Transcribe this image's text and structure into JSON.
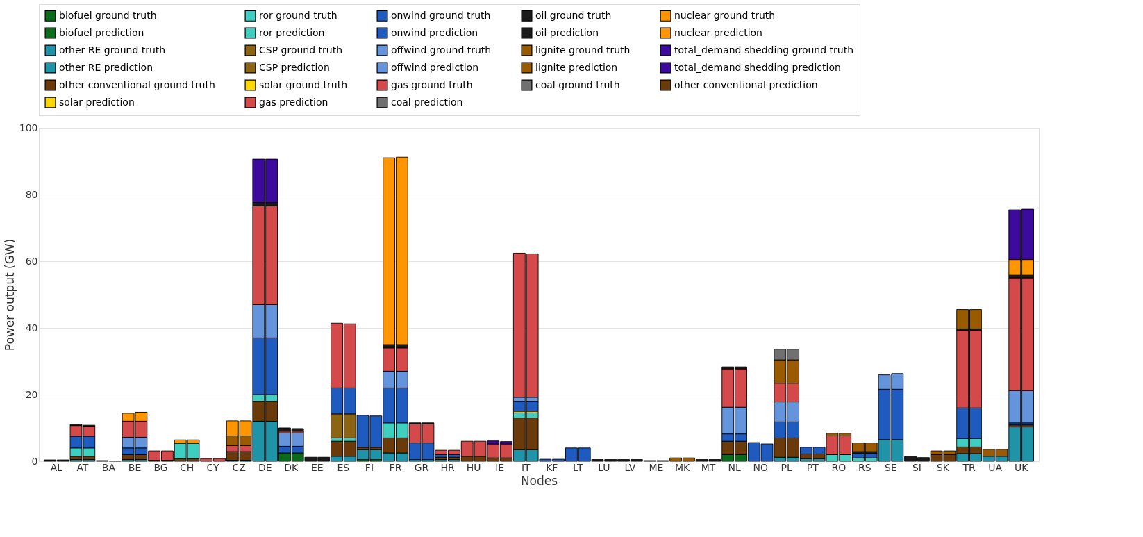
{
  "chart_data": {
    "type": "bar",
    "stacked": true,
    "xlabel": "Nodes",
    "ylabel": "Power output (GW)",
    "categories": [
      "AL",
      null,
      "AT",
      null,
      "BA",
      null,
      "BE",
      null,
      "BG",
      null,
      "CH",
      null,
      "CY",
      null,
      "CZ",
      null,
      "DE",
      null,
      "DK",
      null,
      "EE",
      null,
      "ES",
      null,
      "FI",
      null,
      "FR",
      null,
      "GR",
      null,
      "HR",
      null,
      "HU",
      null,
      "IE",
      null,
      "IT",
      null,
      "KF",
      null,
      "LT",
      null,
      "LU",
      null,
      "LV",
      null,
      "ME",
      null,
      "MK",
      null,
      "MT",
      null,
      "NL",
      null,
      "NO",
      null,
      "PL",
      null,
      "PT",
      null,
      "RO",
      null,
      "RS",
      null,
      "SE",
      null,
      "SI",
      null,
      "SK",
      null,
      "TR",
      null,
      "UA",
      null,
      "UK",
      null
    ],
    "ylim": [
      0,
      100
    ],
    "yticks": [
      0,
      20,
      40,
      60,
      80,
      100
    ],
    "grid": "y",
    "legend": "top",
    "series": [
      {
        "name": "biofuel ground truth",
        "color": "#0a6b1a",
        "values": [
          null,
          null,
          null,
          null,
          null,
          null,
          null,
          null,
          null,
          null,
          null,
          null,
          null,
          null,
          null,
          null,
          null,
          null,
          2.5,
          null,
          null,
          null,
          null,
          null,
          0.5,
          null,
          null,
          null,
          null,
          null,
          null,
          null,
          null,
          null,
          null,
          null,
          null,
          null,
          null,
          null,
          null,
          null,
          null,
          null,
          null,
          null,
          null,
          null,
          null,
          null,
          null,
          null,
          2,
          null,
          null,
          null,
          null,
          null,
          null,
          null,
          null,
          null,
          null,
          null,
          null,
          null,
          null,
          null,
          null,
          null,
          null,
          null,
          null,
          null,
          null,
          null
        ]
      },
      {
        "name": "biofuel prediction",
        "color": "#0a6b1a",
        "values": [
          null,
          null,
          null,
          null,
          null,
          null,
          null,
          null,
          null,
          null,
          null,
          null,
          null,
          null,
          null,
          null,
          null,
          null,
          null,
          2.5,
          null,
          null,
          null,
          null,
          null,
          0.5,
          null,
          null,
          null,
          null,
          null,
          null,
          null,
          null,
          null,
          null,
          null,
          null,
          null,
          null,
          null,
          null,
          null,
          null,
          null,
          null,
          null,
          null,
          null,
          null,
          null,
          null,
          null,
          2,
          null,
          null,
          null,
          null,
          null,
          null,
          null,
          null,
          null,
          null,
          null,
          null,
          null,
          null,
          null,
          null,
          null,
          null,
          null,
          null,
          null,
          null
        ]
      },
      {
        "name": "other RE ground truth",
        "color": "#1f93a8",
        "values": [
          null,
          null,
          0.5,
          null,
          null,
          null,
          0.5,
          null,
          null,
          null,
          null,
          null,
          null,
          null,
          0.3,
          null,
          12,
          null,
          null,
          null,
          null,
          null,
          1.5,
          null,
          3,
          null,
          2.5,
          null,
          0.5,
          null,
          0.5,
          null,
          null,
          null,
          null,
          null,
          3.5,
          null,
          null,
          null,
          null,
          null,
          null,
          null,
          null,
          null,
          null,
          null,
          null,
          null,
          null,
          null,
          null,
          null,
          null,
          null,
          1.2,
          null,
          0.8,
          null,
          null,
          null,
          null,
          null,
          6.5,
          null,
          null,
          null,
          null,
          null,
          2.3,
          null,
          1.5,
          null,
          10.3,
          null
        ]
      },
      {
        "name": "other RE prediction",
        "color": "#1f93a8",
        "values": [
          null,
          null,
          null,
          0.5,
          null,
          null,
          null,
          0.5,
          null,
          null,
          null,
          null,
          null,
          null,
          null,
          0.3,
          null,
          12,
          null,
          null,
          null,
          null,
          null,
          1.5,
          null,
          3,
          null,
          2.5,
          null,
          0.5,
          null,
          0.5,
          null,
          null,
          null,
          null,
          null,
          3.5,
          null,
          null,
          null,
          null,
          null,
          null,
          null,
          null,
          null,
          null,
          null,
          null,
          null,
          null,
          null,
          null,
          null,
          null,
          null,
          1.2,
          null,
          0.8,
          null,
          null,
          null,
          null,
          null,
          6.5,
          null,
          null,
          null,
          null,
          null,
          2.3,
          null,
          1.5,
          null,
          10.3
        ]
      },
      {
        "name": "other conventional ground truth",
        "color": "#6b3a0b",
        "values": [
          null,
          null,
          1,
          null,
          null,
          null,
          1.5,
          null,
          0.3,
          null,
          0.8,
          null,
          null,
          null,
          2.6,
          null,
          6,
          null,
          null,
          null,
          null,
          null,
          4.5,
          null,
          0.7,
          null,
          4.5,
          null,
          null,
          null,
          0.7,
          null,
          1.5,
          null,
          1,
          null,
          9.5,
          null,
          null,
          null,
          null,
          null,
          null,
          null,
          null,
          null,
          null,
          null,
          null,
          null,
          null,
          null,
          4,
          null,
          null,
          null,
          5.8,
          null,
          1.4,
          null,
          null,
          null,
          null,
          null,
          null,
          null,
          null,
          null,
          2,
          null,
          2,
          null,
          null,
          null,
          0.6,
          null
        ]
      },
      {
        "name": "other conventional prediction",
        "color": "#6b3a0b",
        "values": [
          null,
          null,
          null,
          1,
          null,
          null,
          null,
          1.5,
          null,
          0.3,
          null,
          0.8,
          null,
          null,
          null,
          2.6,
          null,
          6,
          null,
          null,
          null,
          null,
          null,
          4.5,
          null,
          0.7,
          null,
          4.5,
          null,
          null,
          null,
          0.7,
          null,
          1.5,
          null,
          1,
          null,
          9.5,
          null,
          null,
          null,
          null,
          null,
          null,
          null,
          null,
          null,
          null,
          null,
          null,
          null,
          null,
          null,
          4,
          null,
          null,
          null,
          5.8,
          null,
          1.4,
          null,
          null,
          null,
          null,
          null,
          null,
          null,
          null,
          null,
          2,
          null,
          2,
          null,
          null,
          null,
          0.6
        ]
      },
      {
        "name": "ror ground truth",
        "color": "#3ecfc0",
        "values": [
          null,
          null,
          2.5,
          null,
          null,
          null,
          null,
          null,
          null,
          null,
          4.6,
          null,
          null,
          null,
          null,
          null,
          2,
          null,
          null,
          null,
          null,
          null,
          1,
          null,
          null,
          null,
          4.5,
          null,
          null,
          null,
          null,
          null,
          null,
          null,
          null,
          null,
          1.5,
          null,
          null,
          null,
          null,
          null,
          null,
          null,
          null,
          null,
          null,
          null,
          null,
          null,
          null,
          null,
          null,
          null,
          null,
          null,
          null,
          null,
          null,
          null,
          2,
          null,
          1,
          null,
          null,
          null,
          null,
          null,
          null,
          null,
          2.5,
          null,
          null,
          null,
          null,
          null
        ]
      },
      {
        "name": "ror prediction",
        "color": "#3ecfc0",
        "values": [
          null,
          null,
          null,
          2.5,
          null,
          null,
          null,
          null,
          null,
          null,
          null,
          4.6,
          null,
          null,
          null,
          null,
          null,
          2,
          null,
          null,
          null,
          null,
          null,
          1,
          null,
          null,
          null,
          4.5,
          null,
          null,
          null,
          null,
          null,
          null,
          null,
          null,
          null,
          1.5,
          null,
          null,
          null,
          null,
          null,
          null,
          null,
          null,
          null,
          null,
          null,
          null,
          null,
          null,
          null,
          null,
          null,
          null,
          null,
          null,
          null,
          null,
          null,
          2,
          null,
          1,
          null,
          null,
          null,
          null,
          null,
          null,
          null,
          2.5,
          null,
          null,
          null,
          null
        ]
      },
      {
        "name": "CSP ground truth",
        "color": "#8b6513",
        "values": [
          null,
          null,
          null,
          null,
          null,
          null,
          null,
          null,
          null,
          null,
          null,
          null,
          null,
          null,
          null,
          null,
          null,
          null,
          null,
          null,
          null,
          null,
          7.2,
          null,
          null,
          null,
          null,
          null,
          null,
          null,
          null,
          null,
          null,
          null,
          null,
          null,
          null,
          null,
          null,
          null,
          null,
          null,
          null,
          null,
          null,
          null,
          null,
          null,
          null,
          null,
          null,
          null,
          null,
          null,
          null,
          null,
          null,
          null,
          null,
          null,
          null,
          null,
          null,
          null,
          null,
          null,
          null,
          null,
          null,
          null,
          null,
          null,
          null,
          null,
          null,
          null
        ]
      },
      {
        "name": "CSP prediction",
        "color": "#8b6513",
        "values": [
          null,
          null,
          null,
          null,
          null,
          null,
          null,
          null,
          null,
          null,
          null,
          null,
          null,
          null,
          null,
          null,
          null,
          null,
          null,
          null,
          null,
          null,
          null,
          7.2,
          null,
          null,
          null,
          null,
          null,
          null,
          null,
          null,
          null,
          null,
          null,
          null,
          null,
          null,
          null,
          null,
          null,
          null,
          null,
          null,
          null,
          null,
          null,
          null,
          null,
          null,
          null,
          null,
          null,
          null,
          null,
          null,
          null,
          null,
          null,
          null,
          null,
          null,
          null,
          null,
          null,
          null,
          null,
          null,
          null,
          null,
          null,
          null,
          null,
          null,
          null,
          null
        ]
      },
      {
        "name": "solar ground truth",
        "color": "#ffd700",
        "values": [
          null,
          null,
          null,
          null,
          null,
          null,
          null,
          null,
          null,
          null,
          null,
          null,
          null,
          null,
          null,
          null,
          null,
          null,
          null,
          null,
          null,
          null,
          null,
          null,
          null,
          null,
          null,
          null,
          null,
          null,
          null,
          null,
          null,
          null,
          null,
          null,
          0.5,
          null,
          null,
          null,
          null,
          null,
          null,
          null,
          null,
          null,
          null,
          null,
          null,
          null,
          null,
          null,
          null,
          null,
          null,
          null,
          null,
          null,
          null,
          null,
          null,
          null,
          null,
          null,
          null,
          null,
          null,
          null,
          null,
          null,
          null,
          null,
          null,
          null,
          null,
          null
        ]
      },
      {
        "name": "solar prediction",
        "color": "#ffd700",
        "values": [
          null,
          null,
          null,
          null,
          null,
          null,
          null,
          null,
          null,
          null,
          null,
          null,
          null,
          null,
          null,
          null,
          null,
          null,
          null,
          null,
          null,
          null,
          null,
          null,
          null,
          null,
          null,
          null,
          null,
          null,
          null,
          null,
          null,
          null,
          null,
          null,
          null,
          0.5,
          null,
          null,
          null,
          null,
          null,
          null,
          null,
          null,
          null,
          null,
          null,
          null,
          null,
          null,
          null,
          null,
          null,
          null,
          null,
          null,
          null,
          null,
          null,
          null,
          null,
          null,
          null,
          null,
          null,
          null,
          null,
          null,
          null,
          null,
          null,
          null,
          null,
          null
        ]
      },
      {
        "name": "onwind ground truth",
        "color": "#1f5bbf",
        "values": [
          null,
          null,
          3.5,
          null,
          null,
          null,
          2,
          null,
          null,
          null,
          null,
          null,
          null,
          null,
          null,
          null,
          17,
          null,
          2,
          null,
          null,
          null,
          7.8,
          null,
          9.6,
          null,
          10.5,
          null,
          5,
          null,
          0.8,
          null,
          null,
          null,
          null,
          null,
          3,
          null,
          0.6,
          null,
          4,
          null,
          null,
          null,
          null,
          null,
          null,
          null,
          null,
          null,
          null,
          null,
          2.2,
          null,
          5.6,
          null,
          4.8,
          null,
          2,
          null,
          null,
          null,
          1.3,
          null,
          15.1,
          null,
          null,
          null,
          null,
          null,
          9.2,
          null,
          null,
          null,
          0.6,
          null
        ]
      },
      {
        "name": "onwind prediction",
        "color": "#1f5bbf",
        "values": [
          null,
          null,
          null,
          3.5,
          null,
          null,
          null,
          2,
          null,
          null,
          null,
          null,
          null,
          null,
          null,
          null,
          null,
          17,
          null,
          2,
          null,
          null,
          null,
          7.8,
          null,
          9.4,
          null,
          10.5,
          null,
          5,
          null,
          0.8,
          null,
          null,
          null,
          null,
          null,
          3,
          null,
          0.6,
          null,
          4,
          null,
          null,
          null,
          null,
          null,
          null,
          null,
          null,
          null,
          null,
          null,
          2.2,
          null,
          5.2,
          null,
          4.8,
          null,
          2,
          null,
          null,
          null,
          1.3,
          null,
          15.1,
          null,
          null,
          null,
          null,
          null,
          9.2,
          null,
          null,
          null,
          0.6
        ]
      },
      {
        "name": "offwind ground truth",
        "color": "#6495dc",
        "values": [
          null,
          null,
          null,
          null,
          null,
          null,
          3.2,
          null,
          null,
          null,
          null,
          null,
          null,
          null,
          null,
          null,
          10,
          null,
          4,
          null,
          null,
          null,
          null,
          null,
          null,
          null,
          5,
          null,
          null,
          null,
          null,
          null,
          null,
          null,
          null,
          null,
          1.2,
          null,
          null,
          null,
          null,
          null,
          null,
          null,
          null,
          null,
          null,
          null,
          null,
          null,
          null,
          null,
          8,
          null,
          null,
          null,
          6,
          null,
          null,
          null,
          null,
          null,
          null,
          null,
          4.3,
          null,
          null,
          null,
          null,
          null,
          null,
          null,
          null,
          null,
          9.7,
          null
        ]
      },
      {
        "name": "offwind prediction",
        "color": "#6495dc",
        "values": [
          null,
          null,
          null,
          null,
          null,
          null,
          null,
          3.2,
          null,
          null,
          null,
          null,
          null,
          null,
          null,
          null,
          null,
          10,
          null,
          4,
          null,
          null,
          null,
          null,
          null,
          null,
          null,
          5,
          null,
          null,
          null,
          null,
          null,
          null,
          null,
          null,
          null,
          1.2,
          null,
          null,
          null,
          null,
          null,
          null,
          null,
          null,
          null,
          null,
          null,
          null,
          null,
          null,
          null,
          8,
          null,
          null,
          null,
          6,
          null,
          null,
          null,
          null,
          null,
          null,
          null,
          4.7,
          null,
          null,
          null,
          null,
          null,
          null,
          null,
          null,
          null,
          9.7
        ]
      },
      {
        "name": "gas ground truth",
        "color": "#d44a4a",
        "values": [
          null,
          null,
          3.2,
          null,
          null,
          null,
          4.8,
          null,
          2.8,
          null,
          null,
          null,
          0.8,
          null,
          1.8,
          null,
          29.6,
          null,
          0.5,
          null,
          null,
          null,
          19.4,
          null,
          null,
          null,
          7,
          null,
          5.7,
          null,
          1.3,
          null,
          4.5,
          null,
          4.2,
          null,
          43.2,
          null,
          null,
          null,
          null,
          null,
          null,
          null,
          null,
          null,
          null,
          null,
          null,
          null,
          null,
          null,
          11.5,
          null,
          null,
          null,
          5.6,
          null,
          null,
          null,
          5.6,
          null,
          null,
          null,
          null,
          null,
          null,
          null,
          null,
          null,
          23.3,
          null,
          null,
          null,
          33.8,
          null
        ]
      },
      {
        "name": "gas prediction",
        "color": "#d44a4a",
        "values": [
          null,
          null,
          null,
          3,
          null,
          null,
          null,
          4.8,
          null,
          2.8,
          null,
          null,
          null,
          0.8,
          null,
          1.8,
          null,
          29.6,
          null,
          0.5,
          null,
          null,
          null,
          19.2,
          null,
          null,
          null,
          7,
          null,
          5.7,
          null,
          1.3,
          null,
          4.5,
          null,
          4.2,
          null,
          43,
          null,
          null,
          null,
          null,
          null,
          null,
          null,
          null,
          null,
          null,
          null,
          null,
          null,
          null,
          null,
          11.5,
          null,
          null,
          null,
          5.6,
          null,
          null,
          null,
          5.6,
          null,
          null,
          null,
          null,
          null,
          null,
          null,
          null,
          null,
          23.3,
          null,
          null,
          null,
          33.8
        ]
      },
      {
        "name": "oil ground truth",
        "color": "#1a1a1a",
        "values": [
          0.4,
          null,
          0.3,
          null,
          0.2,
          null,
          null,
          null,
          null,
          null,
          null,
          null,
          null,
          null,
          null,
          null,
          1,
          null,
          1,
          null,
          1.2,
          null,
          null,
          null,
          null,
          null,
          1,
          null,
          0.3,
          null,
          null,
          null,
          null,
          null,
          null,
          null,
          null,
          null,
          null,
          null,
          null,
          null,
          0.5,
          null,
          0.5,
          null,
          0.2,
          null,
          null,
          null,
          0.5,
          null,
          0.6,
          null,
          null,
          null,
          null,
          null,
          null,
          null,
          null,
          null,
          0.6,
          null,
          null,
          null,
          1.4,
          null,
          null,
          null,
          0.4,
          null,
          null,
          null,
          0.8,
          null
        ]
      },
      {
        "name": "oil prediction",
        "color": "#1a1a1a",
        "values": [
          null,
          0.4,
          null,
          0.3,
          null,
          0.1,
          null,
          null,
          null,
          null,
          null,
          null,
          null,
          null,
          null,
          null,
          null,
          1,
          null,
          0.8,
          null,
          1.2,
          null,
          null,
          null,
          null,
          null,
          1,
          null,
          0.3,
          null,
          null,
          null,
          null,
          null,
          null,
          null,
          null,
          null,
          null,
          null,
          null,
          null,
          0.5,
          null,
          0.5,
          null,
          0.2,
          null,
          null,
          null,
          0.5,
          null,
          0.6,
          null,
          null,
          null,
          null,
          null,
          null,
          null,
          null,
          null,
          0.6,
          null,
          null,
          null,
          1.1,
          null,
          null,
          null,
          0.4,
          null,
          null,
          null,
          0.8
        ]
      },
      {
        "name": "lignite ground truth",
        "color": "#9a5a00",
        "values": [
          null,
          null,
          null,
          null,
          null,
          null,
          null,
          null,
          null,
          null,
          null,
          null,
          null,
          null,
          2.9,
          null,
          null,
          null,
          null,
          null,
          null,
          null,
          null,
          null,
          null,
          null,
          null,
          null,
          null,
          null,
          null,
          null,
          null,
          null,
          null,
          null,
          null,
          null,
          null,
          null,
          null,
          null,
          null,
          null,
          null,
          null,
          null,
          null,
          1,
          null,
          null,
          null,
          null,
          null,
          null,
          null,
          7,
          null,
          null,
          null,
          0.8,
          null,
          2.6,
          null,
          null,
          null,
          null,
          null,
          1.1,
          null,
          5.8,
          null,
          2.1,
          null,
          null,
          null
        ]
      },
      {
        "name": "lignite prediction",
        "color": "#9a5a00",
        "values": [
          null,
          null,
          null,
          null,
          null,
          null,
          null,
          null,
          null,
          null,
          null,
          null,
          null,
          null,
          null,
          2.9,
          null,
          null,
          null,
          null,
          null,
          null,
          null,
          null,
          null,
          null,
          null,
          null,
          null,
          null,
          null,
          null,
          null,
          null,
          null,
          null,
          null,
          null,
          null,
          null,
          null,
          null,
          null,
          null,
          null,
          null,
          null,
          null,
          null,
          1,
          null,
          null,
          null,
          null,
          null,
          null,
          null,
          7,
          null,
          null,
          null,
          0.8,
          null,
          2.6,
          null,
          null,
          null,
          null,
          null,
          1.1,
          null,
          5.8,
          null,
          2.1,
          null,
          null
        ]
      },
      {
        "name": "coal ground truth",
        "color": "#707070",
        "values": [
          null,
          null,
          null,
          null,
          null,
          null,
          null,
          null,
          null,
          null,
          null,
          null,
          null,
          null,
          null,
          null,
          null,
          null,
          null,
          null,
          null,
          null,
          null,
          null,
          null,
          null,
          null,
          null,
          null,
          null,
          null,
          null,
          null,
          null,
          null,
          null,
          null,
          null,
          null,
          null,
          null,
          null,
          null,
          null,
          null,
          null,
          null,
          null,
          null,
          null,
          null,
          null,
          null,
          null,
          null,
          null,
          3.2,
          null,
          null,
          null,
          null,
          null,
          null,
          null,
          null,
          null,
          null,
          null,
          null,
          null,
          null,
          null,
          null,
          null,
          null,
          null
        ]
      },
      {
        "name": "coal prediction",
        "color": "#707070",
        "values": [
          null,
          null,
          null,
          null,
          null,
          null,
          null,
          null,
          null,
          null,
          null,
          null,
          null,
          null,
          null,
          null,
          null,
          null,
          null,
          null,
          null,
          null,
          null,
          null,
          null,
          null,
          null,
          null,
          null,
          null,
          null,
          null,
          null,
          null,
          null,
          null,
          null,
          null,
          null,
          null,
          null,
          null,
          null,
          null,
          null,
          null,
          null,
          null,
          null,
          null,
          null,
          null,
          null,
          null,
          null,
          null,
          null,
          3.2,
          null,
          null,
          null,
          null,
          null,
          null,
          null,
          null,
          null,
          null,
          null,
          null,
          null,
          null,
          null,
          null,
          null,
          null
        ]
      },
      {
        "name": "nuclear ground truth",
        "color": "#ff9500",
        "values": [
          null,
          null,
          null,
          null,
          null,
          null,
          2.4,
          null,
          null,
          null,
          1,
          null,
          null,
          null,
          4.5,
          null,
          null,
          null,
          null,
          null,
          null,
          null,
          null,
          null,
          null,
          null,
          56,
          null,
          null,
          null,
          null,
          null,
          null,
          null,
          null,
          null,
          null,
          null,
          null,
          null,
          null,
          null,
          null,
          null,
          null,
          null,
          null,
          null,
          null,
          null,
          null,
          null,
          null,
          null,
          null,
          null,
          null,
          null,
          null,
          null,
          null,
          null,
          null,
          null,
          null,
          null,
          null,
          null,
          null,
          null,
          null,
          null,
          null,
          null,
          4.7,
          null
        ]
      },
      {
        "name": "nuclear prediction",
        "color": "#ff9500",
        "values": [
          null,
          null,
          null,
          null,
          null,
          null,
          null,
          2.7,
          null,
          null,
          null,
          1,
          null,
          null,
          null,
          4.5,
          null,
          null,
          null,
          null,
          null,
          null,
          null,
          null,
          null,
          null,
          null,
          56.2,
          null,
          null,
          null,
          null,
          null,
          null,
          null,
          null,
          null,
          null,
          null,
          null,
          null,
          null,
          null,
          null,
          null,
          null,
          null,
          null,
          null,
          null,
          null,
          null,
          null,
          null,
          null,
          null,
          null,
          null,
          null,
          null,
          null,
          null,
          null,
          null,
          null,
          null,
          null,
          null,
          null,
          null,
          null,
          null,
          null,
          null,
          null,
          4.7
        ]
      },
      {
        "name": "total_demand shedding ground truth",
        "color": "#3d0a9e",
        "values": [
          null,
          null,
          null,
          null,
          null,
          null,
          null,
          null,
          null,
          null,
          null,
          null,
          null,
          null,
          null,
          null,
          13,
          null,
          null,
          null,
          null,
          null,
          null,
          null,
          null,
          null,
          null,
          null,
          null,
          null,
          null,
          null,
          null,
          null,
          0.9,
          null,
          null,
          null,
          null,
          null,
          null,
          null,
          null,
          null,
          null,
          null,
          null,
          null,
          null,
          null,
          null,
          null,
          null,
          null,
          null,
          null,
          null,
          null,
          null,
          null,
          null,
          null,
          null,
          null,
          null,
          null,
          null,
          null,
          null,
          null,
          null,
          null,
          null,
          null,
          14.9,
          null
        ]
      },
      {
        "name": "total_demand shedding prediction",
        "color": "#3d0a9e",
        "values": [
          null,
          null,
          null,
          null,
          null,
          null,
          null,
          null,
          null,
          null,
          null,
          null,
          null,
          null,
          null,
          null,
          null,
          13,
          null,
          null,
          null,
          null,
          null,
          null,
          null,
          null,
          null,
          null,
          null,
          null,
          null,
          null,
          null,
          null,
          null,
          0.7,
          null,
          null,
          null,
          null,
          null,
          null,
          null,
          null,
          null,
          null,
          null,
          null,
          null,
          null,
          null,
          null,
          null,
          null,
          null,
          null,
          null,
          null,
          null,
          null,
          null,
          null,
          null,
          null,
          null,
          null,
          null,
          null,
          null,
          null,
          null,
          null,
          null,
          null,
          null,
          15.1
        ]
      }
    ]
  }
}
